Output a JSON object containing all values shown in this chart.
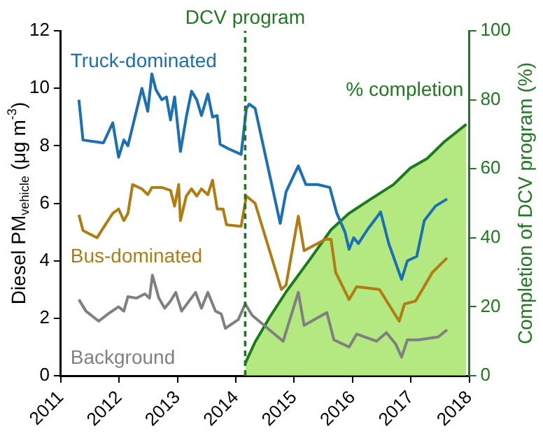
{
  "chart_data": {
    "type": "line",
    "ylabel": "Diesel PM$_{vehicle}$ (μg m$^{-3}$)",
    "y2label": "Completion of DCV program (%)",
    "xlim": [
      2011,
      2018
    ],
    "xticks": [
      2011,
      2012,
      2013,
      2014,
      2015,
      2016,
      2017,
      2018
    ],
    "ylim": [
      0,
      12
    ],
    "yticks": [
      0,
      2,
      4,
      6,
      8,
      10,
      12
    ],
    "y2lim": [
      0,
      100
    ],
    "y2ticks": [
      0,
      20,
      40,
      60,
      80,
      100
    ],
    "grid": false,
    "legend": false,
    "ref_lines": [
      {
        "axis": "x",
        "value": 2014.16,
        "label": "DCV program",
        "color": "#1e7a1e",
        "line_style": "dashed"
      }
    ],
    "series": [
      {
        "name": "Truck-dominated",
        "color": "#1a6fb5",
        "x": [
          2011.31,
          2011.38,
          2011.73,
          2011.89,
          2011.99,
          2012.08,
          2012.15,
          2012.39,
          2012.49,
          2012.56,
          2012.63,
          2012.73,
          2012.81,
          2012.88,
          2012.95,
          2013.05,
          2013.15,
          2013.24,
          2013.33,
          2013.41,
          2013.52,
          2013.6,
          2013.68,
          2013.73,
          2013.87,
          2014.09,
          2014.18,
          2014.23,
          2014.33,
          2014.76,
          2014.86,
          2015.07,
          2015.2,
          2015.4,
          2015.61,
          2015.73,
          2015.87,
          2015.94,
          2016.02,
          2016.1,
          2016.26,
          2016.41,
          2016.48,
          2016.62,
          2016.84,
          2016.94,
          2017.1,
          2017.23,
          2017.42,
          2017.62
        ],
        "values": [
          9.6,
          8.2,
          8.1,
          8.8,
          7.6,
          8.2,
          8.0,
          10.0,
          9.2,
          10.5,
          9.95,
          9.6,
          9.7,
          8.9,
          9.7,
          7.8,
          9.0,
          9.9,
          9.6,
          9.05,
          9.8,
          9.0,
          9.05,
          8.05,
          7.9,
          7.7,
          9.3,
          9.45,
          9.3,
          5.3,
          6.4,
          7.3,
          6.65,
          6.65,
          6.55,
          5.65,
          5.0,
          4.4,
          4.8,
          4.6,
          5.1,
          5.5,
          5.7,
          4.6,
          3.35,
          4.0,
          4.15,
          5.4,
          5.9,
          6.15
        ]
      },
      {
        "name": "Bus-dominated",
        "color": "#b07d12",
        "x": [
          2011.31,
          2011.38,
          2011.62,
          2011.73,
          2011.89,
          2011.99,
          2012.08,
          2012.15,
          2012.23,
          2012.39,
          2012.49,
          2012.56,
          2012.73,
          2012.88,
          2012.95,
          2013.02,
          2013.05,
          2013.15,
          2013.24,
          2013.33,
          2013.41,
          2013.52,
          2013.6,
          2013.68,
          2013.78,
          2013.84,
          2014.09,
          2014.18,
          2014.33,
          2014.78,
          2014.86,
          2015.07,
          2015.17,
          2015.54,
          2015.63,
          2015.71,
          2015.94,
          2016.07,
          2016.46,
          2016.8,
          2016.89,
          2017.08,
          2017.37,
          2017.62
        ],
        "values": [
          5.6,
          5.05,
          4.8,
          5.15,
          5.65,
          5.8,
          5.4,
          5.65,
          6.65,
          6.5,
          6.3,
          6.55,
          6.55,
          6.45,
          5.9,
          6.65,
          5.4,
          6.25,
          6.5,
          6.25,
          6.5,
          6.3,
          6.8,
          5.8,
          5.8,
          5.25,
          5.2,
          6.25,
          6.0,
          3.0,
          3.15,
          5.55,
          4.35,
          4.75,
          4.75,
          3.6,
          2.65,
          3.1,
          3.0,
          1.9,
          2.5,
          2.6,
          3.6,
          4.1
        ]
      },
      {
        "name": "Background",
        "color": "#808080",
        "x": [
          2011.31,
          2011.43,
          2011.65,
          2011.81,
          2011.99,
          2012.08,
          2012.15,
          2012.3,
          2012.44,
          2012.52,
          2012.57,
          2012.68,
          2012.78,
          2012.88,
          2012.97,
          2013.07,
          2013.31,
          2013.41,
          2013.52,
          2013.65,
          2013.75,
          2013.82,
          2014.04,
          2014.16,
          2014.28,
          2014.81,
          2015.07,
          2015.17,
          2015.34,
          2015.56,
          2015.68,
          2015.94,
          2016.07,
          2016.41,
          2016.58,
          2016.74,
          2016.84,
          2016.94,
          2017.13,
          2017.47,
          2017.62
        ],
        "values": [
          2.65,
          2.25,
          1.9,
          2.15,
          2.4,
          2.25,
          2.75,
          2.7,
          2.85,
          2.7,
          3.5,
          2.7,
          2.35,
          2.6,
          2.9,
          2.25,
          2.9,
          2.35,
          2.9,
          2.25,
          2.15,
          1.65,
          1.95,
          2.5,
          2.1,
          1.2,
          2.9,
          1.75,
          1.95,
          2.2,
          1.25,
          1.0,
          1.45,
          1.2,
          1.5,
          1.1,
          0.65,
          1.25,
          1.25,
          1.35,
          1.6
        ]
      },
      {
        "name": "% completion",
        "type": "area",
        "axis": "y2",
        "color": "#1e7a1e",
        "x": [
          2014.16,
          2014.33,
          2014.57,
          2014.86,
          2015.25,
          2015.63,
          2015.94,
          2016.31,
          2016.7,
          2016.99,
          2017.28,
          2017.57,
          2017.95
        ],
        "values": [
          3.6,
          9.8,
          16.7,
          24.3,
          33.3,
          42.3,
          47.1,
          51.2,
          55.4,
          60.2,
          63,
          67.8,
          72.9
        ]
      }
    ]
  }
}
